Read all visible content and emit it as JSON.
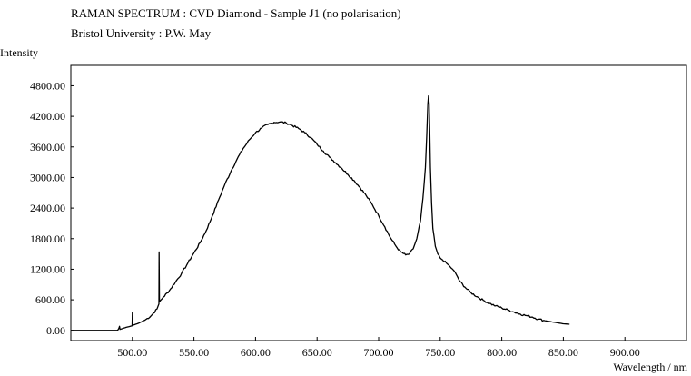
{
  "chart_data": {
    "type": "line",
    "title": "RAMAN SPECTRUM : CVD Diamond - Sample J1 (no polarisation)",
    "subtitle": "Bristol University : P.W. May",
    "ylabel": "Intensity",
    "xlabel": "Wavelength / nm",
    "xlim": [
      450,
      950
    ],
    "ylim": [
      -200,
      5200
    ],
    "x_ticks": [
      500,
      550,
      600,
      650,
      700,
      750,
      800,
      850,
      900
    ],
    "x_tick_labels": [
      "500.00",
      "550.00",
      "600.00",
      "650.00",
      "700.00",
      "750.00",
      "800.00",
      "850.00",
      "900.00"
    ],
    "y_ticks": [
      0,
      600,
      1200,
      1800,
      2400,
      3000,
      3600,
      4200,
      4800
    ],
    "y_tick_labels": [
      "0.00",
      "600.00",
      "1200.00",
      "1800.00",
      "2400.00",
      "3000.00",
      "3600.00",
      "4200.00",
      "4800.00"
    ],
    "grid": false,
    "legend": "none",
    "line_color": "#000000",
    "series": [
      {
        "x": [
          450,
          488,
          489,
          489.5,
          490,
          495,
          499.8,
          500,
          500.3,
          505,
          510,
          515,
          520,
          521.5,
          521.7,
          522,
          525,
          530,
          535,
          540,
          545,
          550,
          555,
          560,
          565,
          570,
          575,
          580,
          585,
          590,
          595,
          600,
          605,
          610,
          615,
          620,
          625,
          630,
          635,
          640,
          645,
          650,
          655,
          660,
          665,
          670,
          675,
          680,
          685,
          690,
          695,
          700,
          705,
          710,
          715,
          718,
          722,
          725,
          728,
          731,
          734,
          736,
          738,
          739,
          740,
          740.5,
          741,
          741.5,
          742,
          743,
          744,
          746,
          748,
          750,
          752,
          755,
          758,
          760,
          763,
          766,
          770,
          775,
          780,
          785,
          790,
          795,
          800,
          805,
          810,
          815,
          820,
          825,
          830,
          835,
          840,
          845,
          850,
          855
        ],
        "y": [
          0,
          0,
          40,
          80,
          20,
          60,
          90,
          360,
          100,
          140,
          200,
          280,
          420,
          520,
          1540,
          560,
          650,
          780,
          950,
          1120,
          1320,
          1520,
          1720,
          1960,
          2250,
          2560,
          2860,
          3120,
          3360,
          3570,
          3740,
          3880,
          3970,
          4040,
          4080,
          4090,
          4070,
          4020,
          3960,
          3880,
          3780,
          3650,
          3520,
          3400,
          3290,
          3180,
          3060,
          2940,
          2800,
          2640,
          2460,
          2250,
          2030,
          1800,
          1620,
          1540,
          1480,
          1500,
          1600,
          1800,
          2150,
          2600,
          3200,
          3800,
          4450,
          4600,
          4450,
          3900,
          3200,
          2500,
          2000,
          1650,
          1500,
          1420,
          1380,
          1320,
          1250,
          1200,
          1100,
          960,
          850,
          740,
          660,
          590,
          530,
          480,
          440,
          400,
          360,
          320,
          290,
          260,
          220,
          190,
          170,
          150,
          130,
          120
        ]
      }
    ]
  }
}
